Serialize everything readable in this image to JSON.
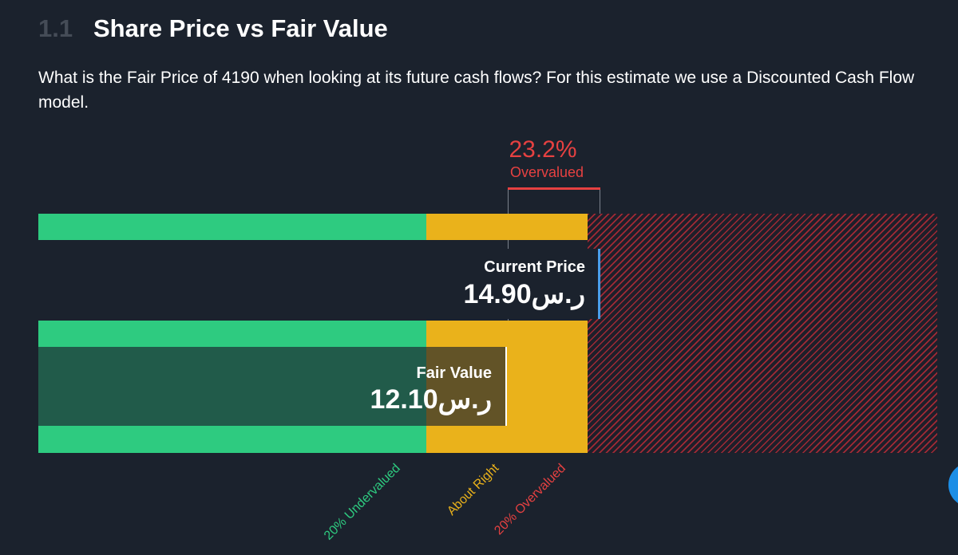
{
  "section": {
    "number": "1.1",
    "title": "Share Price vs Fair Value"
  },
  "description": "What is the Fair Price of 4190 when looking at its future cash flows? For this estimate we use a Discounted Cash Flow model.",
  "valuation": {
    "percent": "23.2%",
    "status": "Overvalued",
    "status_color": "#e64141"
  },
  "current_price": {
    "label": "Current Price",
    "value": "14.90ر.س"
  },
  "fair_value": {
    "label": "Fair Value",
    "value": "12.10ر.س"
  },
  "zones": {
    "undervalued": "20% Undervalued",
    "about_right": "About Right",
    "overvalued": "20% Overvalued"
  },
  "colors": {
    "background": "#1b222d",
    "undervalued": "#2ecb80",
    "about_right": "#eab21b",
    "overvalued": "#e64141",
    "current_price_marker": "#4a9eea",
    "action_button": "#1c8ee6"
  },
  "icons": {
    "floating_action": "circle-button-icon"
  }
}
